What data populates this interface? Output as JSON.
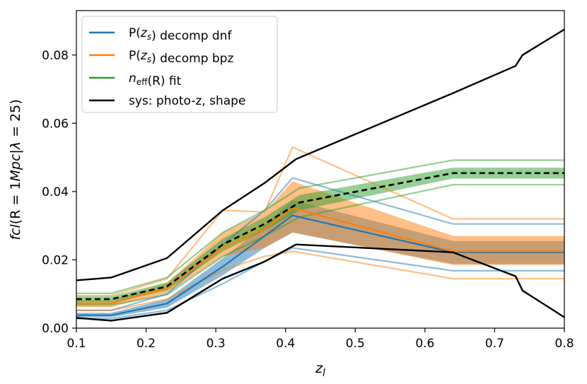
{
  "chart_data": {
    "type": "line",
    "title": "",
    "xlabel": "z_l",
    "ylabel": "fcl(R = 1Mpc|λ = 25)",
    "xlim": [
      0.1,
      0.8
    ],
    "ylim": [
      0.0,
      0.093
    ],
    "xticks": [
      0.1,
      0.2,
      0.3,
      0.4,
      0.5,
      0.6,
      0.7,
      0.8
    ],
    "xtick_labels": [
      "0.1",
      "0.2",
      "0.3",
      "0.4",
      "0.5",
      "0.6",
      "0.7",
      "0.8"
    ],
    "yticks": [
      0.0,
      0.02,
      0.04,
      0.06,
      0.08
    ],
    "ytick_labels": [
      "0.00",
      "0.02",
      "0.04",
      "0.06",
      "0.08"
    ],
    "grid": false,
    "legend": {
      "position": "top-left",
      "entries": [
        {
          "label": "P(z_s) decomp dnf",
          "color": "#1f77b4"
        },
        {
          "label": "P(z_s) decomp bpz",
          "color": "#ff7f0e"
        },
        {
          "label": "n_eff(R) fit",
          "color": "#2ca02c"
        },
        {
          "label": "sys: photo-z, shape",
          "color": "#000000"
        }
      ]
    },
    "series": [
      {
        "name": "P(z_s) decomp dnf",
        "color": "#1f77b4",
        "x": [
          0.1,
          0.15,
          0.23,
          0.31,
          0.37,
          0.41,
          0.64,
          0.8
        ],
        "y": [
          0.0038,
          0.0038,
          0.0072,
          0.018,
          0.027,
          0.033,
          0.0222,
          0.0222
        ],
        "band_lower": [
          0.0032,
          0.0032,
          0.006,
          0.0155,
          0.0235,
          0.028,
          0.0188,
          0.0188
        ],
        "band_upper": [
          0.0045,
          0.0045,
          0.0085,
          0.0205,
          0.03,
          0.0375,
          0.0255,
          0.0255
        ],
        "outer_lower": [
          0.0028,
          0.0028,
          0.0052,
          0.013,
          0.0195,
          0.0235,
          0.0168,
          0.0168
        ],
        "outer_upper": [
          0.0052,
          0.0052,
          0.01,
          0.0245,
          0.0345,
          0.044,
          0.0305,
          0.0305
        ]
      },
      {
        "name": "P(z_s) decomp bpz",
        "color": "#ff7f0e",
        "x": [
          0.1,
          0.15,
          0.23,
          0.31,
          0.37,
          0.41,
          0.64,
          0.8
        ],
        "y": [
          0.0072,
          0.0072,
          0.0118,
          0.0235,
          0.029,
          0.0352,
          0.0225,
          0.0225
        ],
        "band_lower": [
          0.0062,
          0.0062,
          0.0102,
          0.021,
          0.0235,
          0.028,
          0.0185,
          0.0185
        ],
        "band_upper": [
          0.0082,
          0.0082,
          0.0132,
          0.028,
          0.034,
          0.043,
          0.027,
          0.027
        ],
        "outer_lower": [
          0.0052,
          0.0052,
          0.0085,
          0.017,
          0.021,
          0.0225,
          0.0145,
          0.0145
        ],
        "outer_upper": [
          0.0095,
          0.0095,
          0.0145,
          0.0345,
          0.034,
          0.053,
          0.032,
          0.032
        ]
      },
      {
        "name": "n_eff(R) fit",
        "color": "#2ca02c",
        "x": [
          0.1,
          0.15,
          0.23,
          0.31,
          0.37,
          0.42,
          0.64,
          0.8
        ],
        "y": [
          0.0085,
          0.0085,
          0.0122,
          0.0245,
          0.0305,
          0.0368,
          0.0454,
          0.0454
        ],
        "band_lower": [
          0.0075,
          0.0075,
          0.011,
          0.0225,
          0.0285,
          0.0345,
          0.0438,
          0.0438
        ],
        "band_upper": [
          0.0093,
          0.0093,
          0.0134,
          0.0262,
          0.0325,
          0.039,
          0.047,
          0.047
        ],
        "outer_lower": [
          0.0068,
          0.0068,
          0.0098,
          0.021,
          0.027,
          0.0325,
          0.042,
          0.042
        ],
        "outer_upper": [
          0.0102,
          0.0102,
          0.0148,
          0.028,
          0.0345,
          0.041,
          0.0492,
          0.0492
        ]
      },
      {
        "name": "sys: photo-z, shape upper",
        "color": "#000000",
        "x": [
          0.1,
          0.15,
          0.23,
          0.31,
          0.37,
          0.415,
          0.64,
          0.73,
          0.74,
          0.8
        ],
        "y": [
          0.014,
          0.0148,
          0.0205,
          0.0345,
          0.0425,
          0.0495,
          0.0688,
          0.0768,
          0.08,
          0.0875
        ]
      },
      {
        "name": "sys: photo-z, shape lower",
        "color": "#000000",
        "x": [
          0.1,
          0.15,
          0.23,
          0.31,
          0.37,
          0.415,
          0.64,
          0.73,
          0.74,
          0.8
        ],
        "y": [
          0.003,
          0.0022,
          0.0045,
          0.0145,
          0.0195,
          0.0245,
          0.0222,
          0.0152,
          0.011,
          0.0032
        ]
      }
    ],
    "fiducial": {
      "name": "fiducial",
      "color": "#000000",
      "style": "dashed",
      "x": [
        0.1,
        0.15,
        0.23,
        0.31,
        0.37,
        0.42,
        0.64,
        0.8
      ],
      "y": [
        0.0085,
        0.0085,
        0.0122,
        0.0245,
        0.0305,
        0.0368,
        0.0454,
        0.0454
      ]
    }
  }
}
